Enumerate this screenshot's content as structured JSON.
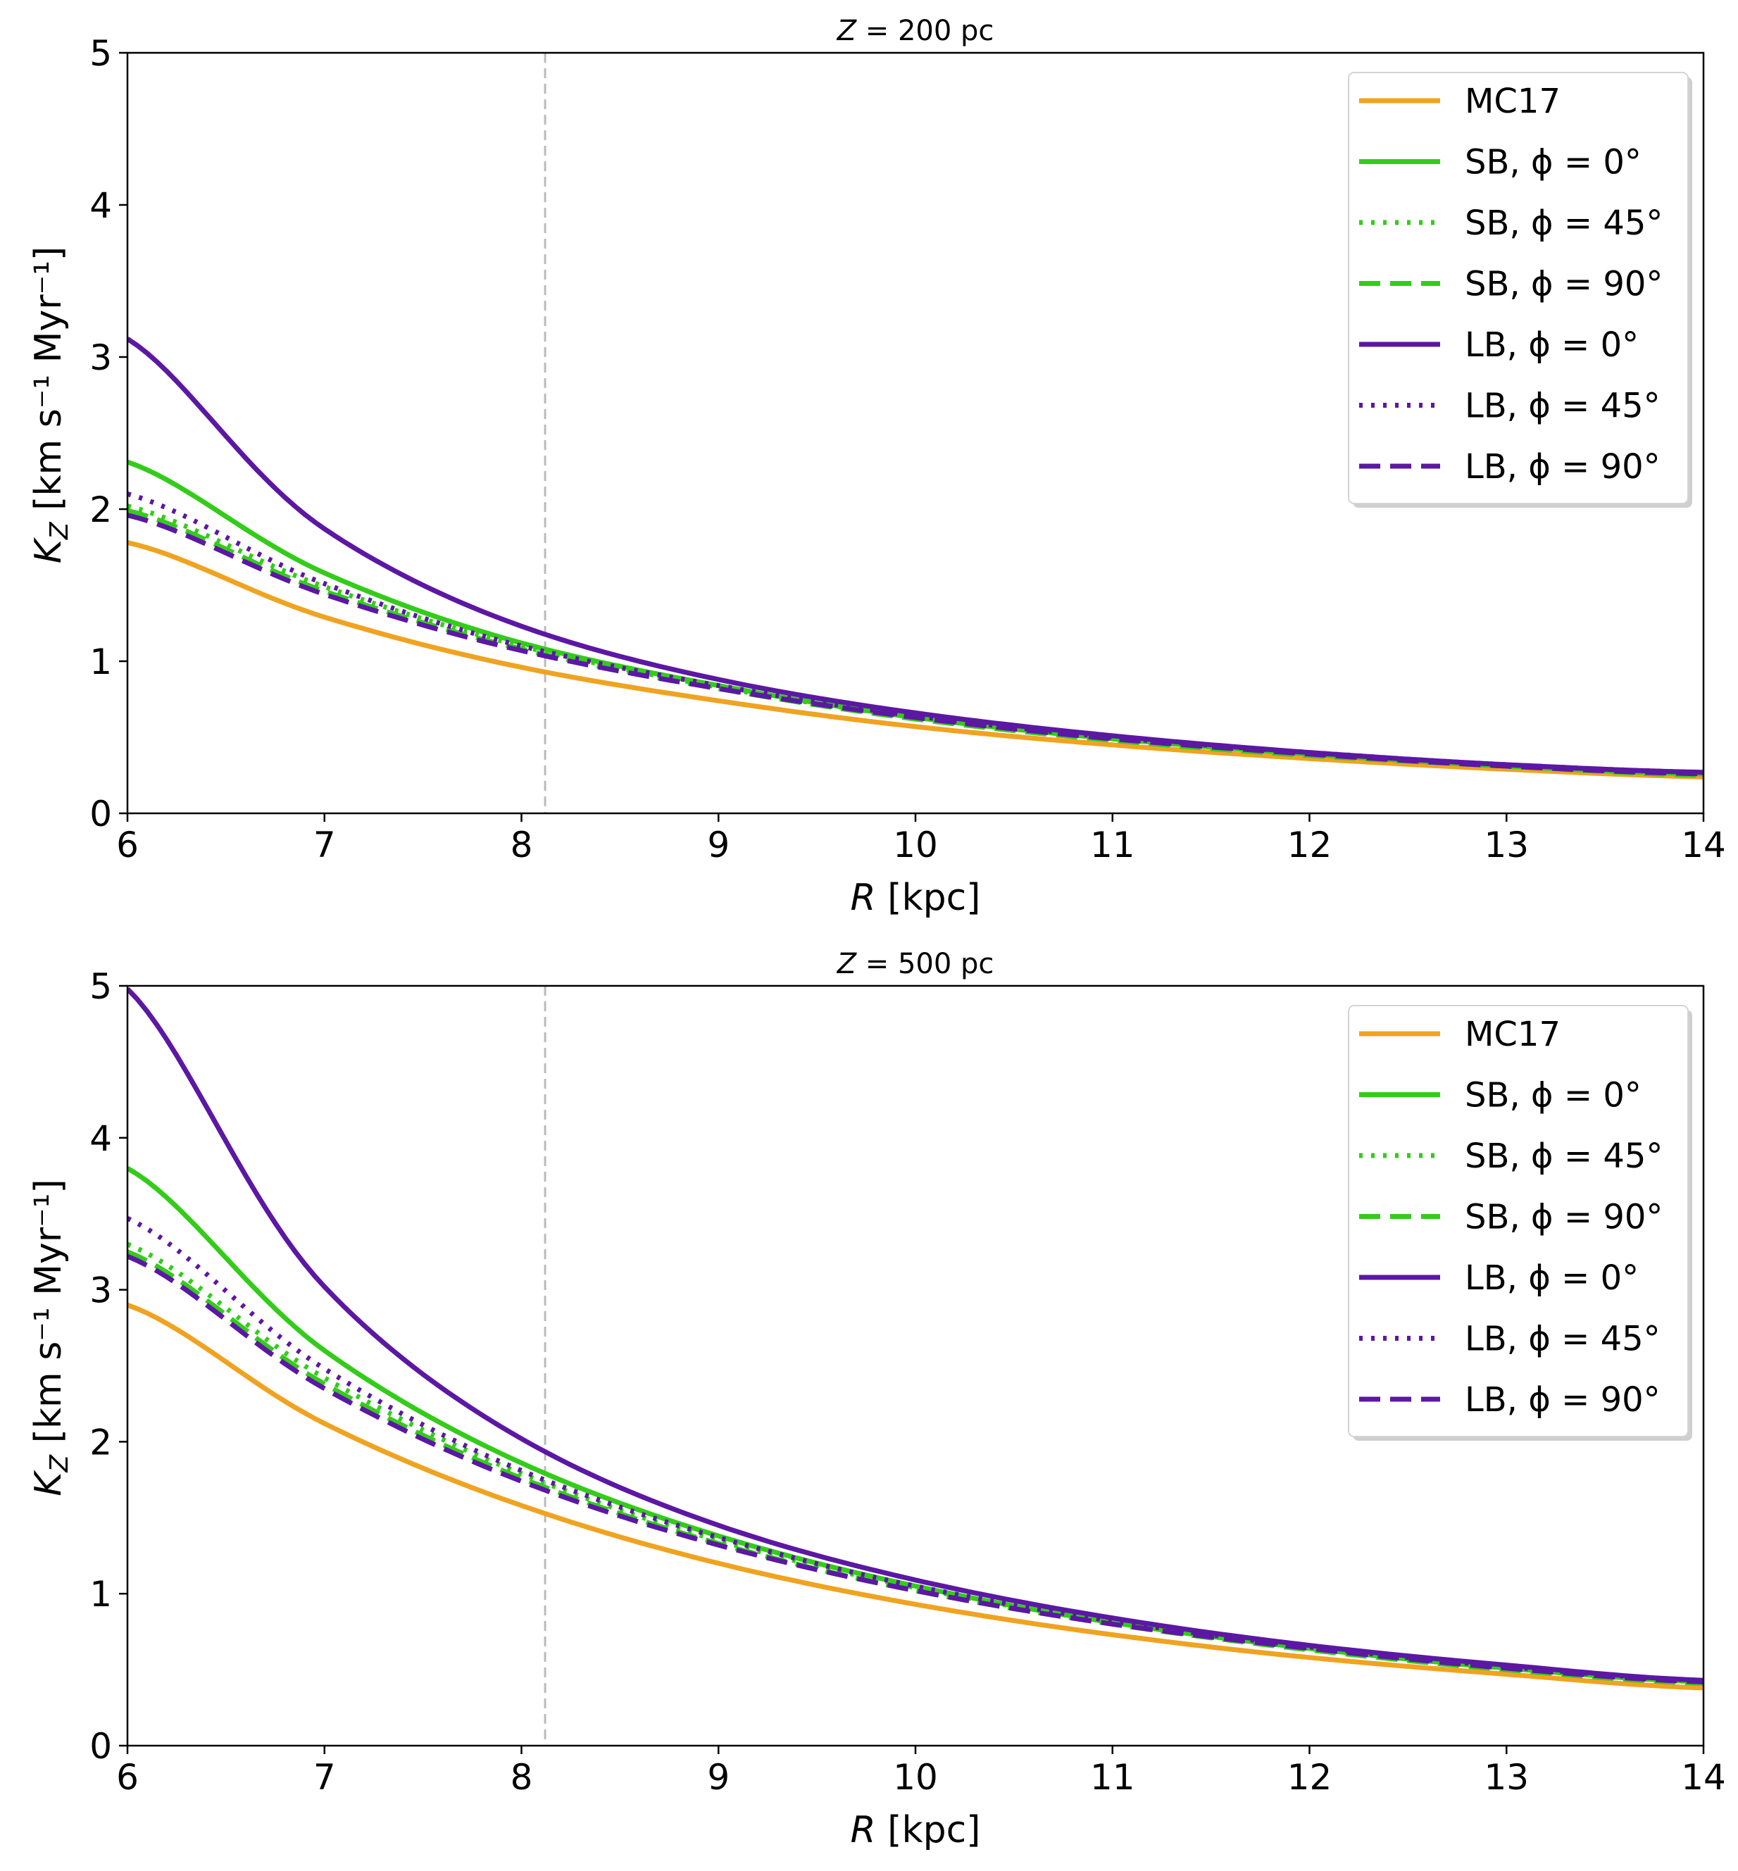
{
  "figure": {
    "ylabel_prefix": "K",
    "ylabel_subscript": "Z",
    "ylabel_units": " [km s⁻¹ Myr⁻¹]",
    "xlabel_var": "R",
    "xlabel_units": " [kpc]"
  },
  "colors": {
    "mc17": "#f0a320",
    "sb": "#33cc1a",
    "lb": "#5c17a3",
    "reference_line": "#bbbbbb"
  },
  "chart_data": [
    {
      "type": "line",
      "title_var": "Z",
      "title_value": " = 200 pc",
      "xlabel": "R [kpc]",
      "ylabel": "K_Z [km s^-1 Myr^-1]",
      "xlim": [
        6,
        14
      ],
      "ylim": [
        0,
        5
      ],
      "xticks": [
        "6",
        "7",
        "8",
        "9",
        "10",
        "11",
        "12",
        "13",
        "14"
      ],
      "yticks": [
        "0",
        "1",
        "2",
        "3",
        "4",
        "5"
      ],
      "reference_line_x": 8.12,
      "legend_position": "top-right",
      "x": [
        6,
        7,
        8,
        9,
        10,
        11,
        12,
        13,
        14
      ],
      "series": [
        {
          "name": "MC17",
          "label_text": "MC17",
          "color_key": "mc17",
          "style": "solid",
          "values": [
            1.78,
            1.29,
            0.96,
            0.74,
            0.57,
            0.45,
            0.36,
            0.29,
            0.24
          ]
        },
        {
          "name": "SB, phi = 0°",
          "label_text": "SB, ϕ = 0°",
          "color_key": "sb",
          "style": "solid",
          "values": [
            2.31,
            1.58,
            1.12,
            0.84,
            0.63,
            0.49,
            0.39,
            0.31,
            0.26
          ]
        },
        {
          "name": "SB, phi = 45°",
          "label_text": "SB, ϕ = 45°",
          "color_key": "sb",
          "style": "dotted",
          "values": [
            2.02,
            1.49,
            1.1,
            0.83,
            0.63,
            0.49,
            0.39,
            0.31,
            0.26
          ]
        },
        {
          "name": "SB, phi = 90°",
          "label_text": "SB, ϕ = 90°",
          "color_key": "sb",
          "style": "dashed",
          "values": [
            1.99,
            1.46,
            1.08,
            0.82,
            0.62,
            0.48,
            0.38,
            0.31,
            0.25
          ]
        },
        {
          "name": "LB, phi = 0°",
          "label_text": "LB, ϕ = 0°",
          "color_key": "lb",
          "style": "solid",
          "values": [
            3.12,
            1.87,
            1.23,
            0.88,
            0.66,
            0.51,
            0.4,
            0.32,
            0.27
          ]
        },
        {
          "name": "LB, phi = 45°",
          "label_text": "LB, ϕ = 45°",
          "color_key": "lb",
          "style": "dotted",
          "values": [
            2.1,
            1.51,
            1.1,
            0.84,
            0.64,
            0.5,
            0.4,
            0.32,
            0.27
          ]
        },
        {
          "name": "LB, phi = 90°",
          "label_text": "LB, ϕ = 90°",
          "color_key": "lb",
          "style": "dashed",
          "values": [
            1.96,
            1.44,
            1.07,
            0.82,
            0.63,
            0.49,
            0.39,
            0.31,
            0.26
          ]
        }
      ]
    },
    {
      "type": "line",
      "title_var": "Z",
      "title_value": " = 500 pc",
      "xlabel": "R [kpc]",
      "ylabel": "K_Z [km s^-1 Myr^-1]",
      "xlim": [
        6,
        14
      ],
      "ylim": [
        0,
        5
      ],
      "xticks": [
        "6",
        "7",
        "8",
        "9",
        "10",
        "11",
        "12",
        "13",
        "14"
      ],
      "yticks": [
        "0",
        "1",
        "2",
        "3",
        "4",
        "5"
      ],
      "reference_line_x": 8.12,
      "legend_position": "top-right",
      "x": [
        6,
        7,
        8,
        9,
        10,
        11,
        12,
        13,
        14
      ],
      "series": [
        {
          "name": "MC17",
          "label_text": "MC17",
          "color_key": "mc17",
          "style": "solid",
          "values": [
            2.9,
            2.12,
            1.58,
            1.2,
            0.93,
            0.73,
            0.58,
            0.47,
            0.38
          ]
        },
        {
          "name": "SB, phi = 0°",
          "label_text": "SB, ϕ = 0°",
          "color_key": "sb",
          "style": "solid",
          "values": [
            3.8,
            2.6,
            1.86,
            1.38,
            1.05,
            0.81,
            0.64,
            0.51,
            0.42
          ]
        },
        {
          "name": "SB, phi = 45°",
          "label_text": "SB, ϕ = 45°",
          "color_key": "sb",
          "style": "dotted",
          "values": [
            3.3,
            2.42,
            1.79,
            1.35,
            1.04,
            0.81,
            0.64,
            0.51,
            0.42
          ]
        },
        {
          "name": "SB, phi = 90°",
          "label_text": "SB, ϕ = 90°",
          "color_key": "sb",
          "style": "dashed",
          "values": [
            3.25,
            2.38,
            1.76,
            1.33,
            1.02,
            0.8,
            0.63,
            0.5,
            0.41
          ]
        },
        {
          "name": "LB, phi = 0°",
          "label_text": "LB, ϕ = 0°",
          "color_key": "lb",
          "style": "solid",
          "values": [
            4.98,
            3.02,
            2.02,
            1.45,
            1.09,
            0.84,
            0.66,
            0.53,
            0.43
          ]
        },
        {
          "name": "LB, phi = 45°",
          "label_text": "LB, ϕ = 45°",
          "color_key": "lb",
          "style": "dotted",
          "values": [
            3.47,
            2.48,
            1.81,
            1.37,
            1.05,
            0.82,
            0.65,
            0.52,
            0.43
          ]
        },
        {
          "name": "LB, phi = 90°",
          "label_text": "LB, ϕ = 90°",
          "color_key": "lb",
          "style": "dashed",
          "values": [
            3.22,
            2.35,
            1.74,
            1.32,
            1.02,
            0.8,
            0.64,
            0.51,
            0.42
          ]
        }
      ]
    }
  ]
}
